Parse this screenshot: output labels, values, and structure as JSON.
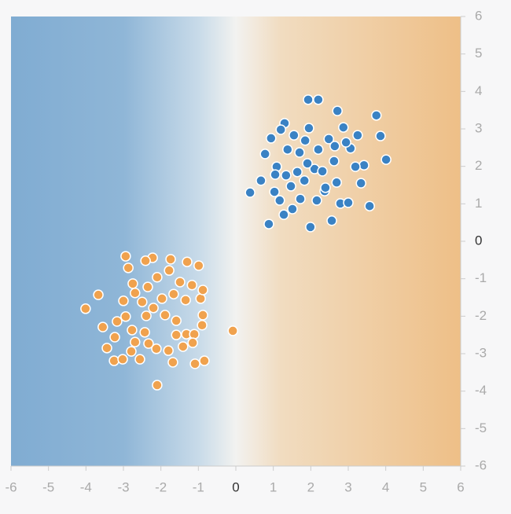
{
  "chart_data": {
    "type": "scatter",
    "xlim": [
      -6,
      6
    ],
    "ylim": [
      -6,
      6
    ],
    "xticks": [
      -6,
      -5,
      -4,
      -3,
      -2,
      -1,
      0,
      1,
      2,
      3,
      4,
      5,
      6
    ],
    "yticks": [
      -6,
      -5,
      -4,
      -3,
      -2,
      -1,
      0,
      1,
      2,
      3,
      4,
      5,
      6
    ],
    "series": [
      {
        "color": "#3a82c4",
        "x": [
          1.93,
          2.2,
          2.71,
          3.75,
          3.86,
          4.01,
          3.57,
          1.99,
          0.88,
          0.38,
          1.28,
          2.79,
          3.0,
          2.56,
          3.34,
          3.42,
          3.19,
          3.06,
          3.25,
          2.87,
          2.94,
          2.48,
          1.95,
          1.3,
          1.2,
          0.94,
          0.78,
          0.67,
          1.03,
          1.17,
          1.51,
          1.72,
          2.16,
          2.37,
          2.69,
          2.1,
          1.64,
          1.34,
          1.09,
          1.38,
          1.7,
          1.91,
          2.31,
          2.62,
          2.2,
          2.64,
          1.85,
          1.55,
          1.05,
          2.39,
          1.83,
          1.47
        ],
        "values": [
          3.78,
          3.78,
          3.48,
          3.36,
          2.81,
          2.18,
          0.94,
          0.38,
          0.46,
          1.3,
          0.71,
          1.01,
          1.03,
          0.55,
          1.55,
          2.03,
          1.99,
          2.48,
          2.83,
          3.04,
          2.64,
          2.73,
          3.02,
          3.15,
          2.98,
          2.75,
          2.33,
          1.62,
          1.32,
          1.09,
          0.86,
          1.13,
          1.09,
          1.34,
          1.57,
          1.93,
          1.85,
          1.76,
          1.99,
          2.45,
          2.37,
          2.08,
          1.87,
          2.14,
          2.45,
          2.54,
          2.69,
          2.83,
          1.78,
          1.43,
          1.62,
          1.47
        ]
      },
      {
        "color": "#f0a24e",
        "x": [
          -4.01,
          -3.67,
          -3.55,
          -3.44,
          -3.25,
          -3.02,
          -2.79,
          -2.56,
          -2.1,
          -1.68,
          -1.09,
          -0.84,
          -0.08,
          -0.9,
          -0.88,
          -0.94,
          -0.88,
          -0.99,
          -1.3,
          -1.74,
          -2.22,
          -2.41,
          -2.94,
          -2.87,
          -2.75,
          -3.0,
          -3.17,
          -3.23,
          -2.94,
          -2.77,
          -2.69,
          -2.33,
          -2.12,
          -1.8,
          -1.41,
          -1.32,
          -1.59,
          -1.89,
          -2.2,
          -2.5,
          -2.69,
          -2.35,
          -2.1,
          -1.78,
          -1.49,
          -1.17,
          -1.34,
          -1.66,
          -1.97,
          -2.39,
          -2.43,
          -1.59,
          -1.11,
          -1.15
        ],
        "values": [
          -1.8,
          -1.43,
          -2.29,
          -2.85,
          -3.19,
          -3.15,
          -2.94,
          -3.15,
          -3.84,
          -3.23,
          -3.27,
          -3.19,
          -2.39,
          -2.24,
          -1.97,
          -1.53,
          -1.3,
          -0.65,
          -0.55,
          -0.48,
          -0.44,
          -0.52,
          -0.4,
          -0.71,
          -1.13,
          -1.59,
          -2.14,
          -2.56,
          -2.01,
          -2.37,
          -2.69,
          -2.73,
          -2.87,
          -2.92,
          -2.81,
          -2.48,
          -2.12,
          -1.97,
          -1.78,
          -1.62,
          -1.38,
          -1.22,
          -0.96,
          -0.78,
          -1.09,
          -1.17,
          -1.57,
          -1.41,
          -1.53,
          -1.99,
          -2.43,
          -2.5,
          -2.48,
          -2.71
        ]
      }
    ]
  }
}
